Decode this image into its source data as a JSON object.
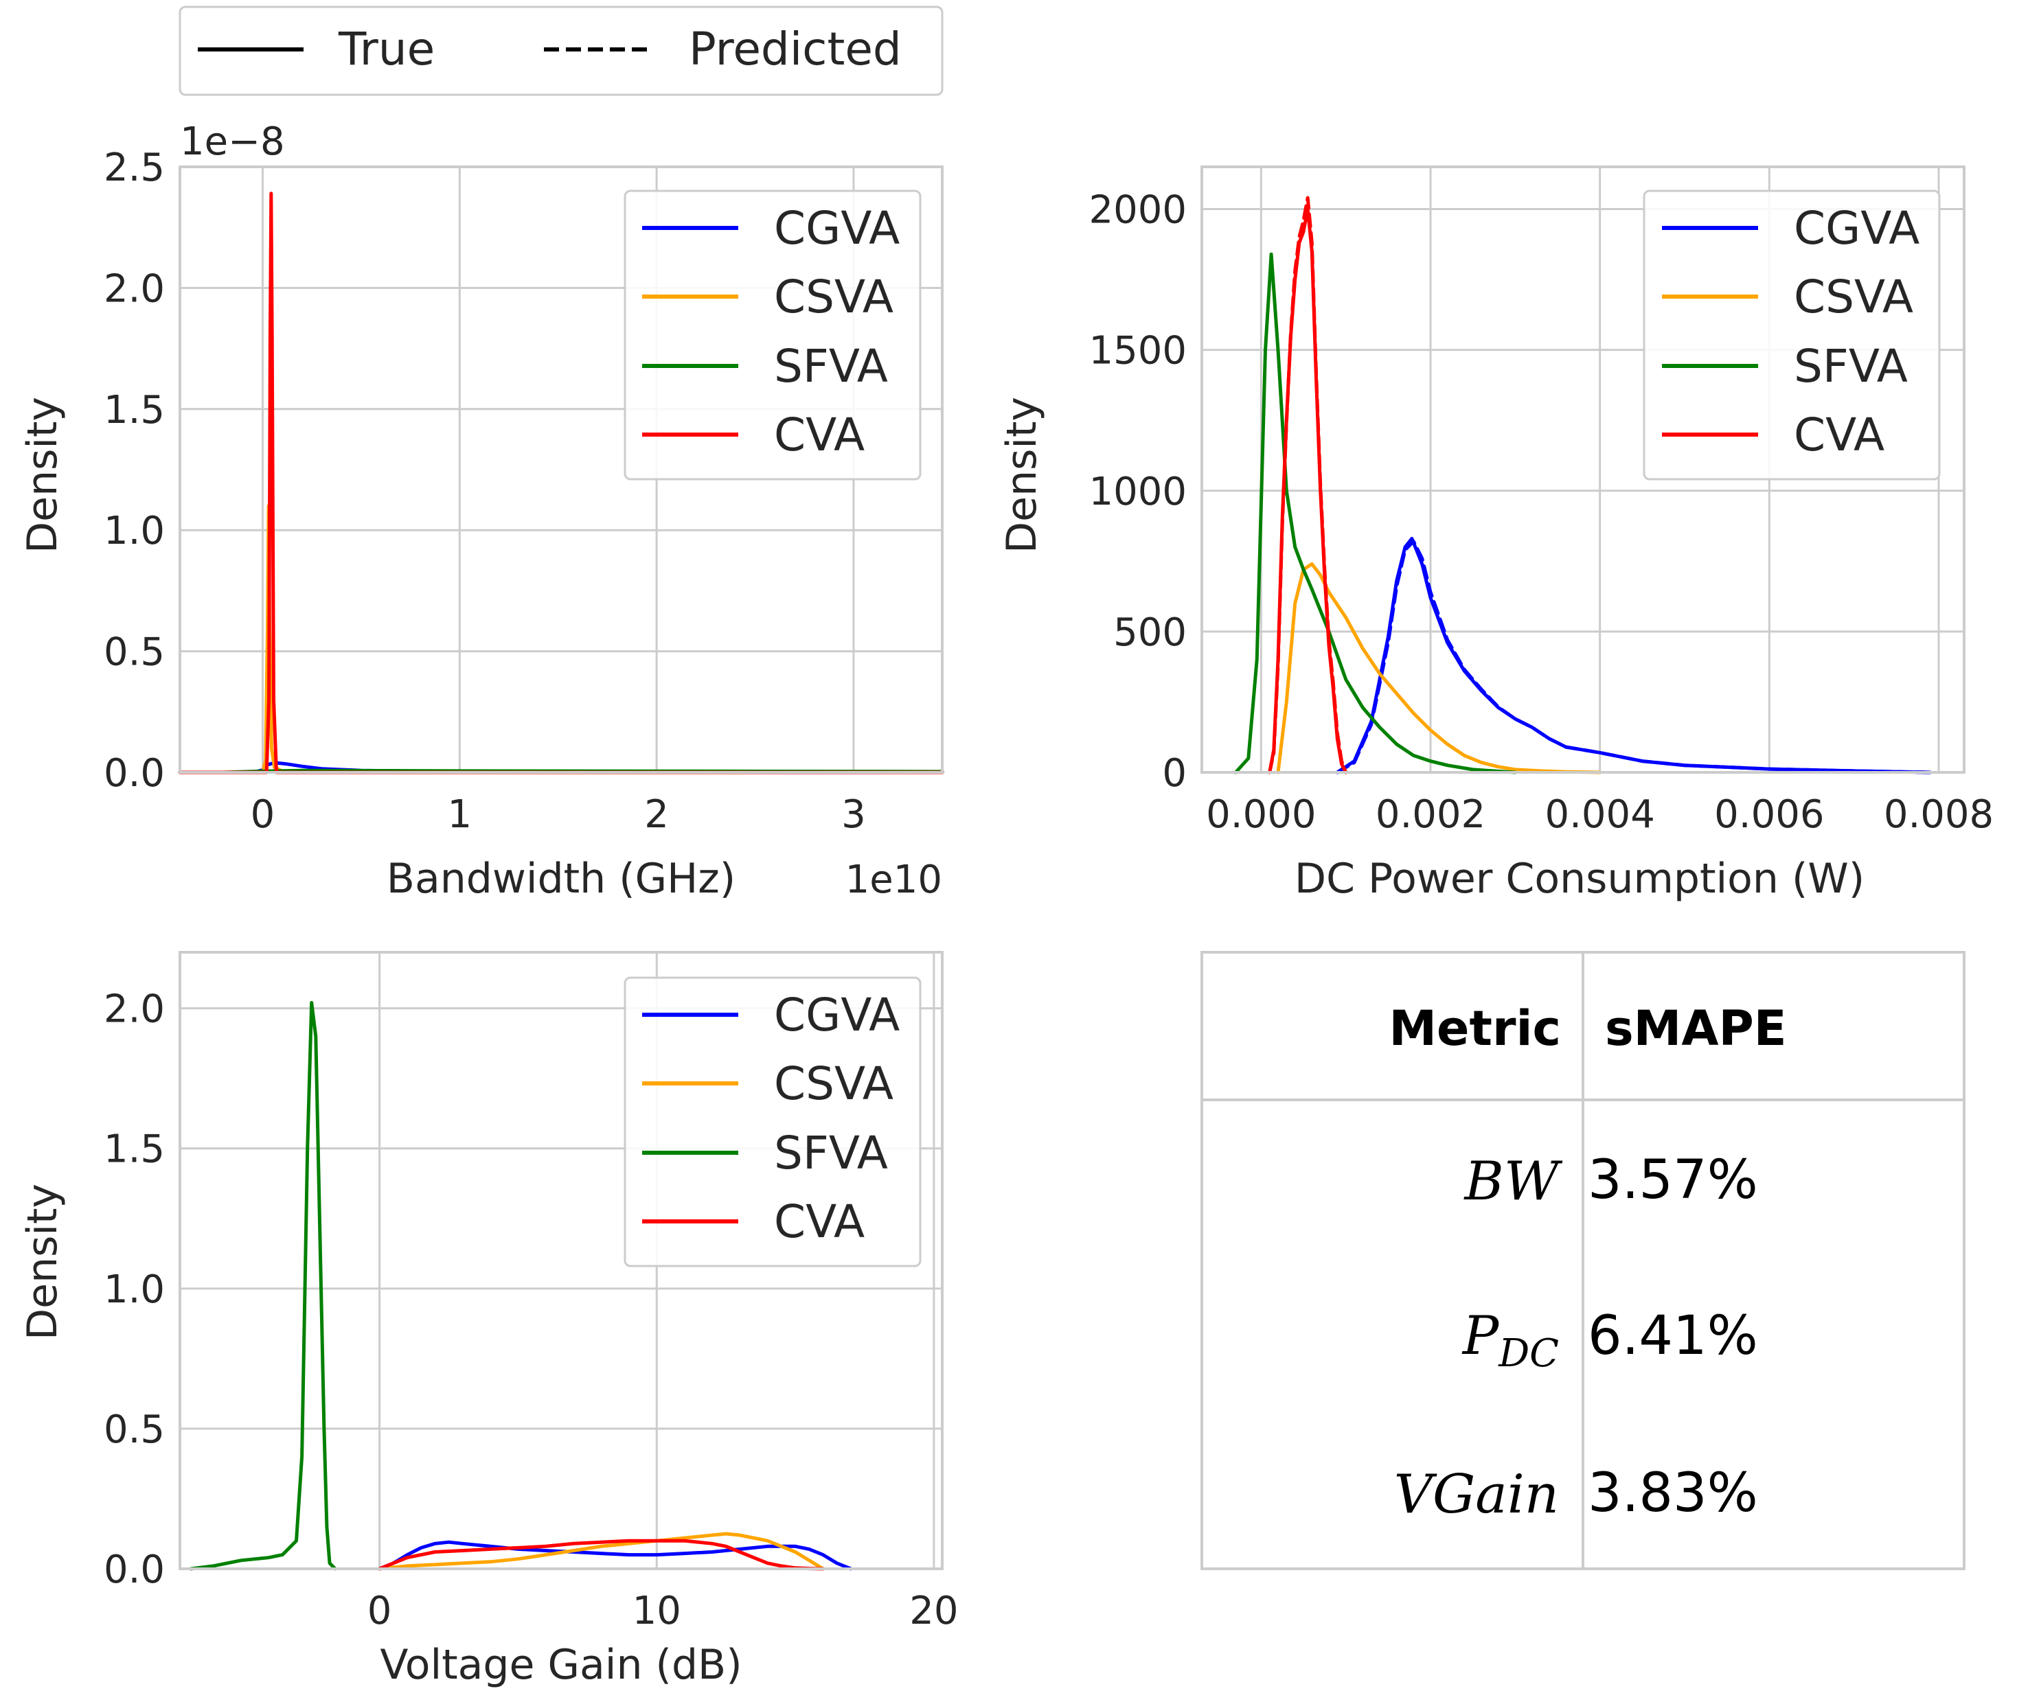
{
  "legend_top": {
    "items": [
      {
        "label": "True",
        "style": "solid"
      },
      {
        "label": "Predicted",
        "style": "dashed"
      }
    ]
  },
  "colors": {
    "CGVA": "#0000ff",
    "CSVA": "#ffa500",
    "SFVA": "#008000",
    "CVA": "#ff0000",
    "grid": "#cccccc",
    "text": "#262626"
  },
  "chart_data": [
    {
      "type": "line",
      "kind": "kde",
      "xlabel": "Bandwidth (GHz)",
      "ylabel": "Density",
      "x_offset_label": "1e10",
      "y_offset_label": "1e−8",
      "xlim": [
        -0.42,
        3.45
      ],
      "ylim": [
        0,
        2.5
      ],
      "x_ticks": [
        0,
        1,
        2,
        3
      ],
      "x_tick_labels": [
        "0",
        "1",
        "2",
        "3"
      ],
      "y_ticks": [
        0,
        0.5,
        1.0,
        1.5,
        2.0,
        2.5
      ],
      "y_tick_labels": [
        "0.0",
        "0.5",
        "1.0",
        "1.5",
        "2.0",
        "2.5"
      ],
      "legend": [
        "CGVA",
        "CSVA",
        "SFVA",
        "CVA"
      ],
      "series": [
        {
          "name": "CGVA",
          "x": [
            -0.42,
            -0.05,
            0.0,
            0.02,
            0.06,
            0.12,
            0.2,
            0.3,
            0.5,
            0.8,
            1.2,
            2.0,
            3.0,
            3.45
          ],
          "y": [
            0,
            0,
            0.01,
            0.03,
            0.04,
            0.035,
            0.025,
            0.015,
            0.008,
            0.005,
            0.003,
            0.002,
            0.001,
            0.0
          ]
        },
        {
          "name": "CSVA",
          "x": [
            -0.42,
            0.0,
            0.015,
            0.025,
            0.03,
            0.035,
            0.045,
            0.06,
            0.1,
            1.0,
            3.45
          ],
          "y": [
            0,
            0,
            0.05,
            0.6,
            1.1,
            0.6,
            0.1,
            0.02,
            0.005,
            0.002,
            0.0
          ]
        },
        {
          "name": "SFVA",
          "x": [
            -0.42,
            -0.2,
            0.0,
            0.2,
            1.0,
            2.0,
            3.0,
            3.45
          ],
          "y": [
            0.0,
            0.0,
            0.005,
            0.008,
            0.006,
            0.005,
            0.004,
            0.003
          ]
        },
        {
          "name": "CVA",
          "x": [
            -0.42,
            0.02,
            0.032,
            0.038,
            0.043,
            0.048,
            0.056,
            0.07,
            3.45
          ],
          "y": [
            0,
            0,
            0.3,
            1.8,
            2.39,
            1.8,
            0.3,
            0.0,
            0.0
          ]
        }
      ]
    },
    {
      "type": "line",
      "kind": "kde",
      "xlabel": "DC Power Consumption (W)",
      "ylabel": "Density",
      "xlim": [
        -0.0007,
        0.0083
      ],
      "ylim": [
        0,
        2150
      ],
      "x_ticks": [
        0.0,
        0.002,
        0.004,
        0.006,
        0.008
      ],
      "x_tick_labels": [
        "0.000",
        "0.002",
        "0.004",
        "0.006",
        "0.008"
      ],
      "y_ticks": [
        0,
        500,
        1000,
        1500,
        2000
      ],
      "y_tick_labels": [
        "0",
        "500",
        "1000",
        "1500",
        "2000"
      ],
      "legend": [
        "CGVA",
        "CSVA",
        "SFVA",
        "CVA"
      ],
      "series": [
        {
          "name": "CGVA",
          "x": [
            0.0009,
            0.0011,
            0.0013,
            0.0015,
            0.0016,
            0.0017,
            0.00178,
            0.0019,
            0.002,
            0.0022,
            0.0024,
            0.0026,
            0.0028,
            0.003,
            0.0032,
            0.0034,
            0.0036,
            0.0038,
            0.004,
            0.0045,
            0.005,
            0.006,
            0.007,
            0.0079
          ],
          "y": [
            0,
            40,
            180,
            480,
            680,
            800,
            830,
            740,
            620,
            460,
            360,
            290,
            230,
            190,
            160,
            120,
            90,
            80,
            70,
            40,
            25,
            12,
            5,
            0
          ]
        },
        {
          "name": "CGVA (Predicted)",
          "x": [
            0.0009,
            0.0011,
            0.0013,
            0.0015,
            0.0016,
            0.0017,
            0.0018,
            0.0019,
            0.002,
            0.0022,
            0.0024,
            0.0026,
            0.0028,
            0.003,
            0.0032,
            0.0034,
            0.0036,
            0.0038,
            0.004,
            0.0045,
            0.005,
            0.006,
            0.007,
            0.0079
          ],
          "y": [
            0,
            35,
            170,
            460,
            660,
            790,
            820,
            760,
            640,
            470,
            365,
            295,
            232,
            190,
            160,
            120,
            90,
            80,
            70,
            40,
            25,
            12,
            5,
            0
          ]
        },
        {
          "name": "CSVA",
          "x": [
            0.0002,
            0.0003,
            0.0004,
            0.0005,
            0.0006,
            0.0007,
            0.0008,
            0.001,
            0.0012,
            0.0014,
            0.0016,
            0.0018,
            0.002,
            0.0022,
            0.0024,
            0.0026,
            0.0028,
            0.003,
            0.0033,
            0.0036,
            0.004
          ],
          "y": [
            0,
            250,
            600,
            720,
            740,
            700,
            640,
            550,
            440,
            350,
            280,
            210,
            150,
            100,
            60,
            35,
            20,
            10,
            5,
            2,
            0
          ]
        },
        {
          "name": "SFVA",
          "x": [
            -0.0003,
            -0.00015,
            -5e-05,
            5e-05,
            0.00012,
            0.0002,
            0.0003,
            0.0004,
            0.0005,
            0.0006,
            0.0008,
            0.001,
            0.0012,
            0.0014,
            0.0016,
            0.0018,
            0.002,
            0.0022,
            0.0025,
            0.003
          ],
          "y": [
            0,
            50,
            400,
            1500,
            1840,
            1500,
            1000,
            800,
            720,
            650,
            500,
            330,
            230,
            160,
            100,
            60,
            40,
            25,
            10,
            0
          ]
        },
        {
          "name": "CVA",
          "x": [
            0.0001,
            0.00015,
            0.0002,
            0.00025,
            0.0003,
            0.00035,
            0.0004,
            0.00045,
            0.0005,
            0.00055,
            0.0006,
            0.00065,
            0.0007,
            0.00075,
            0.0008,
            0.00085,
            0.0009,
            0.00095,
            0.001
          ],
          "y": [
            0,
            80,
            400,
            900,
            1250,
            1550,
            1750,
            1880,
            1920,
            2000,
            1850,
            1400,
            1000,
            700,
            450,
            300,
            120,
            30,
            0
          ]
        },
        {
          "name": "CVA (Predicted)",
          "x": [
            0.0001,
            0.00015,
            0.0002,
            0.00025,
            0.0003,
            0.00035,
            0.0004,
            0.00045,
            0.0005,
            0.00055,
            0.0006,
            0.00065,
            0.0007,
            0.00075,
            0.0008,
            0.00085,
            0.0009,
            0.00095,
            0.001
          ],
          "y": [
            0,
            70,
            380,
            880,
            1240,
            1560,
            1780,
            1900,
            1960,
            2040,
            1880,
            1420,
            1020,
            720,
            470,
            320,
            140,
            40,
            0
          ]
        }
      ]
    },
    {
      "type": "line",
      "kind": "kde",
      "xlabel": "Voltage Gain (dB)",
      "ylabel": "Density",
      "xlim": [
        -7.2,
        20.3
      ],
      "ylim": [
        0,
        2.2
      ],
      "x_ticks": [
        0,
        10,
        20
      ],
      "x_tick_labels": [
        "0",
        "10",
        "20"
      ],
      "y_ticks": [
        0,
        0.5,
        1.0,
        1.5,
        2.0
      ],
      "y_tick_labels": [
        "0.0",
        "0.5",
        "1.0",
        "1.5",
        "2.0"
      ],
      "legend": [
        "CGVA",
        "CSVA",
        "SFVA",
        "CVA"
      ],
      "series": [
        {
          "name": "CGVA",
          "x": [
            0,
            0.5,
            1,
            1.5,
            2,
            2.5,
            3,
            4,
            5,
            6,
            7,
            8,
            9,
            10,
            11,
            12,
            13,
            14,
            15,
            15.5,
            16,
            16.5,
            17
          ],
          "y": [
            0,
            0.02,
            0.05,
            0.075,
            0.09,
            0.095,
            0.09,
            0.08,
            0.07,
            0.065,
            0.06,
            0.055,
            0.05,
            0.05,
            0.055,
            0.06,
            0.07,
            0.08,
            0.08,
            0.07,
            0.05,
            0.02,
            0
          ]
        },
        {
          "name": "CSVA",
          "x": [
            0,
            1,
            2,
            3,
            4,
            5,
            6,
            7,
            8,
            9,
            10,
            11,
            12,
            12.5,
            13,
            14,
            15,
            15.5,
            16
          ],
          "y": [
            0,
            0.01,
            0.015,
            0.02,
            0.025,
            0.035,
            0.05,
            0.065,
            0.08,
            0.09,
            0.1,
            0.11,
            0.12,
            0.125,
            0.12,
            0.1,
            0.06,
            0.03,
            0
          ]
        },
        {
          "name": "SFVA",
          "x": [
            -6.8,
            -6,
            -5,
            -4,
            -3.5,
            -3,
            -2.8,
            -2.6,
            -2.45,
            -2.3,
            -2.15,
            -2.0,
            -1.9,
            -1.8,
            -1.6
          ],
          "y": [
            0,
            0.01,
            0.03,
            0.04,
            0.05,
            0.1,
            0.4,
            1.5,
            2.02,
            1.9,
            1.2,
            0.5,
            0.15,
            0.02,
            0
          ]
        },
        {
          "name": "CVA",
          "x": [
            0,
            0.5,
            1,
            2,
            3,
            4,
            5,
            6,
            7,
            8,
            9,
            10,
            11,
            12,
            12.5,
            13,
            13.5,
            14,
            14.5,
            15,
            15.5,
            16
          ],
          "y": [
            0,
            0.02,
            0.04,
            0.06,
            0.065,
            0.07,
            0.075,
            0.08,
            0.09,
            0.095,
            0.1,
            0.1,
            0.1,
            0.09,
            0.08,
            0.06,
            0.04,
            0.02,
            0.01,
            0.003,
            0.001,
            0
          ]
        }
      ]
    },
    {
      "type": "table",
      "headers": [
        "Metric",
        "sMAPE"
      ],
      "rows": [
        {
          "metric": "BW",
          "metric_sub": "",
          "value": "3.57%"
        },
        {
          "metric": "P",
          "metric_sub": "DC",
          "value": "6.41%"
        },
        {
          "metric": "VGain",
          "metric_sub": "",
          "value": "3.83%"
        }
      ]
    }
  ]
}
